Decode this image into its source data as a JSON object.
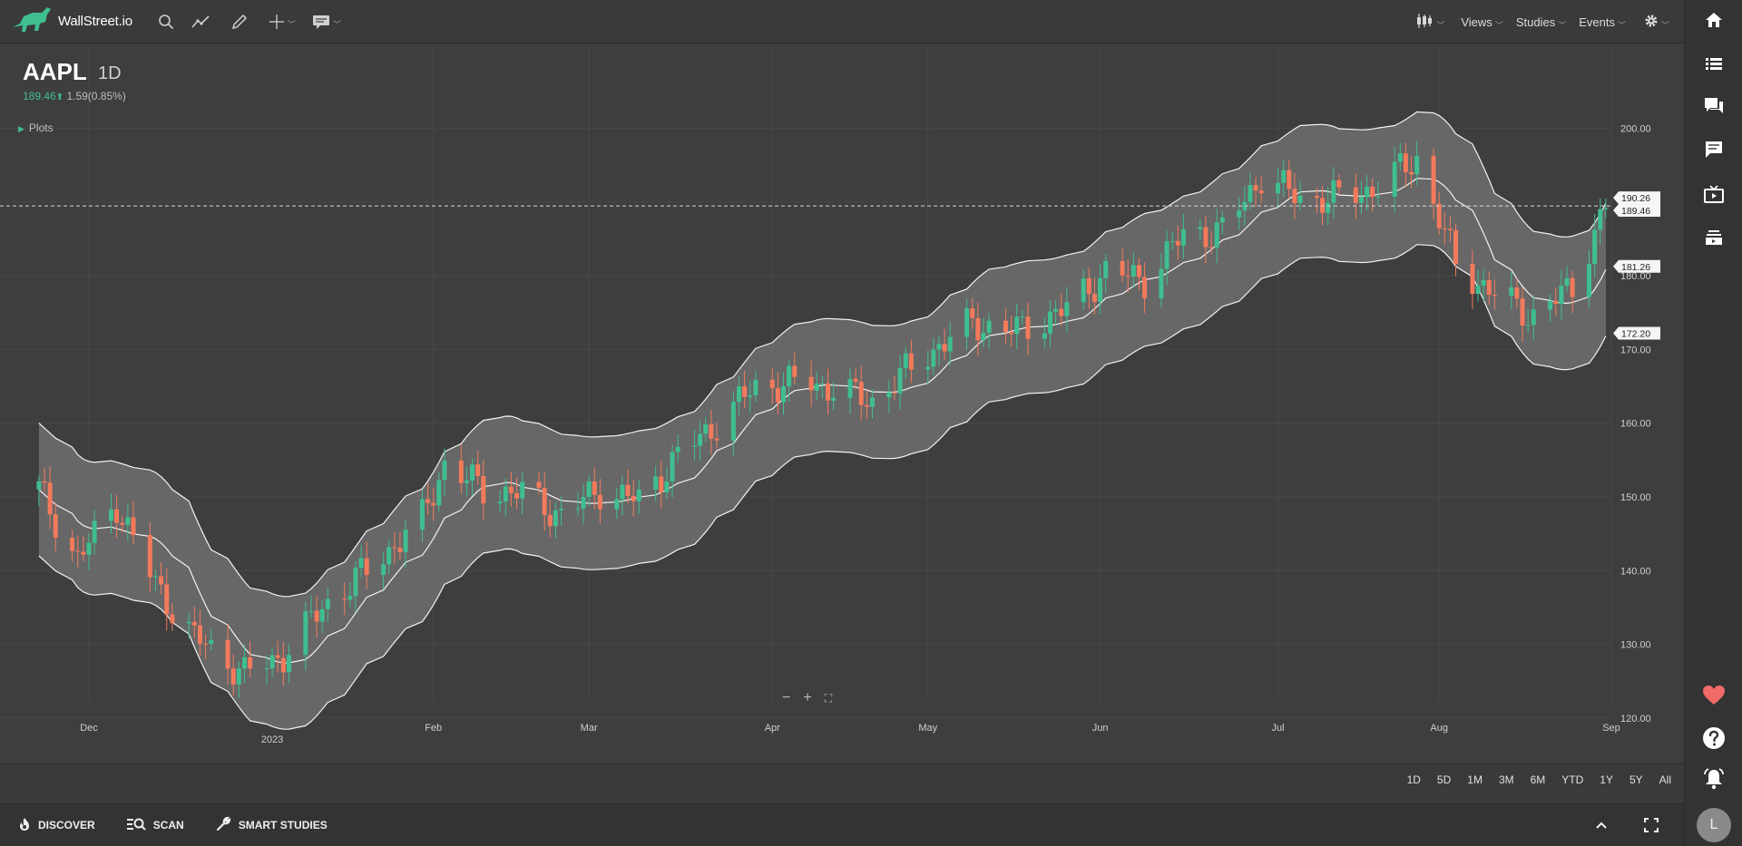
{
  "app": {
    "brand": "WallStreet.io",
    "accent": "#3fbf8f",
    "up_color": "#3fbf8f",
    "down_color": "#f47a5c"
  },
  "toolbar": {
    "icons": [
      "search-icon",
      "trendline-icon",
      "pencil-icon",
      "crosshair-icon",
      "comment-icon"
    ],
    "right_menu": {
      "views": "Views",
      "studies": "Studies",
      "events": "Events"
    }
  },
  "quote": {
    "symbol": "AAPL",
    "interval": "1D",
    "price": "189.46",
    "arrow": "⬆",
    "change": "1.59(0.85%)"
  },
  "plots_label": "Plots",
  "zoom": {
    "minus": "−",
    "plus": "+",
    "fit": "⛶"
  },
  "ranges": [
    "1D",
    "5D",
    "1M",
    "3M",
    "6M",
    "YTD",
    "1Y",
    "5Y",
    "All"
  ],
  "bottom": {
    "discover": "DISCOVER",
    "scan": "SCAN",
    "smart_studies": "SMART STUDIES"
  },
  "sidebar": {
    "icons": [
      "home-icon",
      "watchlist-icon",
      "forum-icon",
      "chat-icon",
      "tv-icon",
      "layers-icon",
      "heart-icon",
      "help-icon",
      "bell-icon"
    ],
    "avatar": "L"
  },
  "chart_data": {
    "type": "candlestick",
    "symbol": "AAPL",
    "interval": "1D",
    "y_ticks": [
      "200.00",
      "190.00",
      "180.00",
      "170.00",
      "160.00",
      "150.00",
      "140.00",
      "130.00",
      "120.00"
    ],
    "x_ticks": [
      "Dec",
      "2023",
      "Feb",
      "Mar",
      "Apr",
      "May",
      "Jun",
      "Jul",
      "Aug",
      "Sep"
    ],
    "ylim": [
      117.9,
      208.9
    ],
    "last_price": 189.46,
    "price_labels": [
      "189.46",
      "190.26",
      "181.26",
      "172.20"
    ],
    "band_end": {
      "upper": 190.26,
      "middle": 181.26,
      "lower": 172.2
    },
    "study": "Keltner-style channel (upper / middle / lower)",
    "candles_sampled": [
      {
        "d": "2022-11-22",
        "o": 148.5,
        "c": 151.0
      },
      {
        "d": "2022-11-29",
        "o": 147.0,
        "c": 141.5
      },
      {
        "d": "2022-12-06",
        "o": 142.5,
        "c": 149.0
      },
      {
        "d": "2022-12-13",
        "o": 145.0,
        "c": 138.0
      },
      {
        "d": "2022-12-20",
        "o": 133.5,
        "c": 131.0
      },
      {
        "d": "2022-12-29",
        "o": 128.0,
        "c": 126.0
      },
      {
        "d": "2023-01-05",
        "o": 126.0,
        "c": 128.5
      },
      {
        "d": "2023-01-12",
        "o": 131.0,
        "c": 135.0
      },
      {
        "d": "2023-01-20",
        "o": 136.0,
        "c": 140.0
      },
      {
        "d": "2023-01-30",
        "o": 143.5,
        "c": 147.0
      },
      {
        "d": "2023-02-03",
        "o": 150.0,
        "c": 154.5
      },
      {
        "d": "2023-02-10",
        "o": 152.0,
        "c": 151.0
      },
      {
        "d": "2023-02-17",
        "o": 153.0,
        "c": 150.5
      },
      {
        "d": "2023-02-24",
        "o": 148.0,
        "c": 147.5
      },
      {
        "d": "2023-03-03",
        "o": 146.0,
        "c": 151.0
      },
      {
        "d": "2023-03-10",
        "o": 151.0,
        "c": 149.5
      },
      {
        "d": "2023-03-17",
        "o": 152.0,
        "c": 155.5
      },
      {
        "d": "2023-03-24",
        "o": 157.5,
        "c": 160.0
      },
      {
        "d": "2023-03-31",
        "o": 162.5,
        "c": 165.0
      },
      {
        "d": "2023-04-10",
        "o": 163.5,
        "c": 165.5
      },
      {
        "d": "2023-04-21",
        "o": 166.5,
        "c": 163.0
      },
      {
        "d": "2023-05-01",
        "o": 168.0,
        "c": 169.5
      },
      {
        "d": "2023-05-09",
        "o": 170.5,
        "c": 173.5
      },
      {
        "d": "2023-05-17",
        "o": 171.0,
        "c": 172.5
      },
      {
        "d": "2023-05-26",
        "o": 173.5,
        "c": 175.5
      },
      {
        "d": "2023-06-02",
        "o": 177.5,
        "c": 180.5
      },
      {
        "d": "2023-06-09",
        "o": 180.5,
        "c": 179.5
      },
      {
        "d": "2023-06-16",
        "o": 183.5,
        "c": 185.5
      },
      {
        "d": "2023-06-23",
        "o": 186.5,
        "c": 186.0
      },
      {
        "d": "2023-06-30",
        "o": 189.5,
        "c": 193.5
      },
      {
        "d": "2023-07-07",
        "o": 191.5,
        "c": 190.5
      },
      {
        "d": "2023-07-14",
        "o": 190.5,
        "c": 190.5
      },
      {
        "d": "2023-07-21",
        "o": 193.5,
        "c": 192.0
      },
      {
        "d": "2023-07-28",
        "o": 195.0,
        "c": 196.0
      },
      {
        "d": "2023-08-04",
        "o": 187.5,
        "c": 181.5
      },
      {
        "d": "2023-08-11",
        "o": 178.0,
        "c": 177.5
      },
      {
        "d": "2023-08-18",
        "o": 175.0,
        "c": 174.5
      },
      {
        "d": "2023-08-25",
        "o": 176.5,
        "c": 178.5
      },
      {
        "d": "2023-08-31",
        "o": 187.5,
        "c": 189.5
      }
    ]
  }
}
